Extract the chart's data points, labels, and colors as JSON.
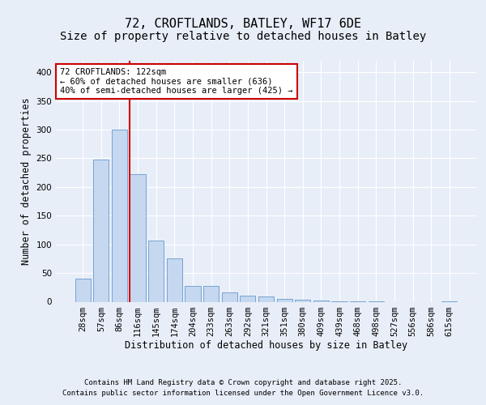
{
  "title_line1": "72, CROFTLANDS, BATLEY, WF17 6DE",
  "title_line2": "Size of property relative to detached houses in Batley",
  "xlabel": "Distribution of detached houses by size in Batley",
  "ylabel": "Number of detached properties",
  "bar_labels": [
    "28sqm",
    "57sqm",
    "86sqm",
    "116sqm",
    "145sqm",
    "174sqm",
    "204sqm",
    "233sqm",
    "263sqm",
    "292sqm",
    "321sqm",
    "351sqm",
    "380sqm",
    "409sqm",
    "439sqm",
    "468sqm",
    "498sqm",
    "527sqm",
    "556sqm",
    "586sqm",
    "615sqm"
  ],
  "bar_values": [
    40,
    248,
    300,
    223,
    106,
    75,
    28,
    28,
    16,
    10,
    9,
    5,
    3,
    2,
    1,
    1,
    1,
    0,
    0,
    0,
    1
  ],
  "bar_color": "#c5d8f0",
  "bar_edgecolor": "#6699cc",
  "vline_color": "#cc0000",
  "vline_index": 3,
  "annotation_text": "72 CROFTLANDS: 122sqm\n← 60% of detached houses are smaller (636)\n40% of semi-detached houses are larger (425) →",
  "annotation_box_facecolor": "#ffffff",
  "annotation_box_edgecolor": "#cc0000",
  "ylim": [
    0,
    420
  ],
  "yticks": [
    0,
    50,
    100,
    150,
    200,
    250,
    300,
    350,
    400
  ],
  "background_color": "#e8eef8",
  "axes_background_color": "#e8eef8",
  "grid_color": "#ffffff",
  "footer_line1": "Contains HM Land Registry data © Crown copyright and database right 2025.",
  "footer_line2": "Contains public sector information licensed under the Open Government Licence v3.0.",
  "title_fontsize": 11,
  "subtitle_fontsize": 10,
  "axis_label_fontsize": 8.5,
  "tick_fontsize": 7.5,
  "annotation_fontsize": 7.5,
  "footer_fontsize": 6.5
}
